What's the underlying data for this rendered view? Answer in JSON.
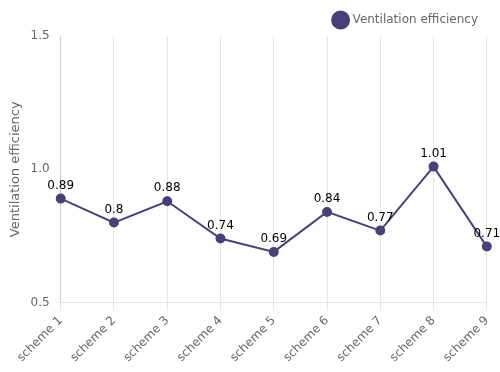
{
  "chart_data": {
    "type": "line",
    "categories": [
      "scheme 1",
      "scheme 2",
      "scheme 3",
      "scheme 4",
      "scheme 5",
      "scheme 6",
      "scheme 7",
      "scheme 8",
      "scheme 9"
    ],
    "series": [
      {
        "name": "Ventilation efficiency",
        "color": "#4a3f7a",
        "marker": "o",
        "values": [
          0.89,
          0.8,
          0.88,
          0.74,
          0.69,
          0.84,
          0.77,
          1.01,
          0.71
        ]
      }
    ],
    "ylabel": "Ventilation efficiency",
    "ylim": [
      0.5,
      1.5
    ],
    "yticks": [
      0.5,
      {
        "value": 1.0,
        "label": "1.0"
      },
      1.5
    ],
    "grid": "x",
    "legend": "upper right",
    "data_labels": true
  }
}
